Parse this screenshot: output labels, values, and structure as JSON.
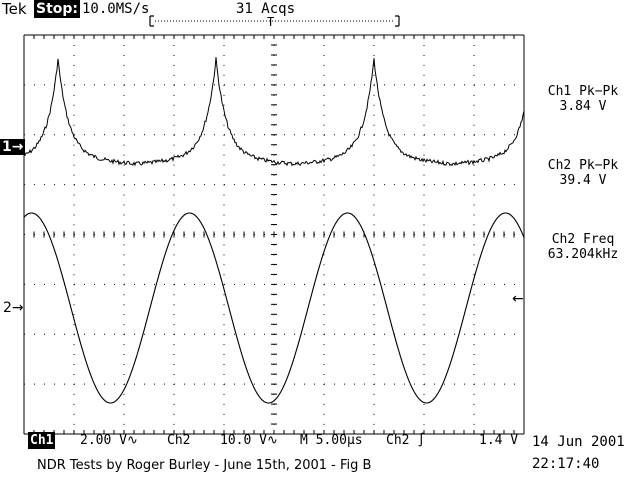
{
  "header": {
    "brand": "Tek",
    "run_state": "Stop:",
    "sample_rate": "10.0MS/s",
    "acquisitions": "31 Acqs"
  },
  "markers": {
    "ch1": "1",
    "ch2": "2"
  },
  "measurements": [
    {
      "label": "Ch1 Pk−Pk",
      "value": "3.84 V"
    },
    {
      "label": "Ch2 Pk−Pk",
      "value": "39.4 V"
    },
    {
      "label": "Ch2 Freq",
      "value": "63.204kHz"
    }
  ],
  "status": {
    "ch1_name": "Ch1",
    "ch1_scale": "2.00 V",
    "ch2_name": "Ch2",
    "ch2_scale": "10.0 V",
    "timebase": "M 5.00µs",
    "trigger_source": "Ch2",
    "trigger_level": "1.4 V"
  },
  "timestamp": {
    "date": "14 Jun 2001",
    "time": "22:17:40"
  },
  "caption": "NDR Tests by Roger Burley - June 15th, 2001 - Fig B",
  "icons": {
    "coupling": "ac-coupling-icon",
    "trigger_slope": "rising-edge-icon",
    "channel_arrow": "right-arrow-icon",
    "trigger_arrow": "left-arrow-icon"
  }
}
